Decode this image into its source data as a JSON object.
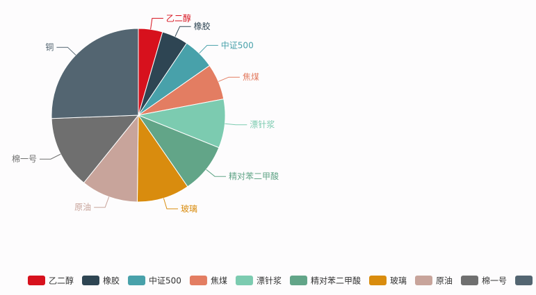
{
  "chart_data": {
    "type": "pie",
    "title": "",
    "legend_position": "bottom",
    "categories": [
      "乙二醇",
      "橡胶",
      "中证500",
      "焦煤",
      "漂针浆",
      "精对苯二甲酸",
      "玻璃",
      "原油",
      "棉一号",
      "铜"
    ],
    "values": [
      4.5,
      4.9,
      5.9,
      6.7,
      9.1,
      9.3,
      9.8,
      10.6,
      13.6,
      25.6
    ],
    "colors": [
      "#d7111d",
      "#2e4553",
      "#48a1aa",
      "#e37d62",
      "#7ccbb0",
      "#62a588",
      "#d98c0e",
      "#c8a49b",
      "#6f6f6f",
      "#536571"
    ]
  }
}
